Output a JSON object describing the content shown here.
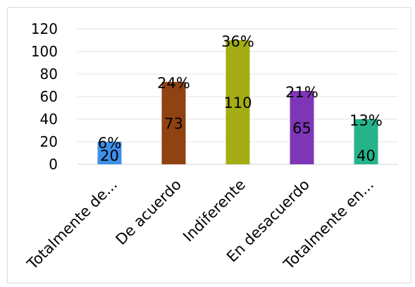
{
  "chart_data": {
    "type": "bar",
    "title": "",
    "xlabel": "",
    "ylabel": "",
    "categories": [
      "Totalmente de...",
      "De acuerdo",
      "Indiferente",
      "En desacuerdo",
      "Totalmente en..."
    ],
    "values": [
      20,
      73,
      110,
      65,
      40
    ],
    "percent_labels": [
      "6%",
      "24%",
      "36%",
      "21%",
      "13%"
    ],
    "value_labels": [
      "20",
      "73",
      "110",
      "65",
      "40"
    ],
    "colors": [
      "#3f8fe8",
      "#8f4212",
      "#a4ad14",
      "#7e36b6",
      "#27b38a"
    ],
    "ylim": [
      0,
      120
    ],
    "yticks": [
      0,
      20,
      40,
      60,
      80,
      100,
      120
    ],
    "ytick_labels": [
      "0",
      "20",
      "40",
      "60",
      "80",
      "100",
      "120"
    ],
    "grid": true,
    "legend": "none"
  }
}
